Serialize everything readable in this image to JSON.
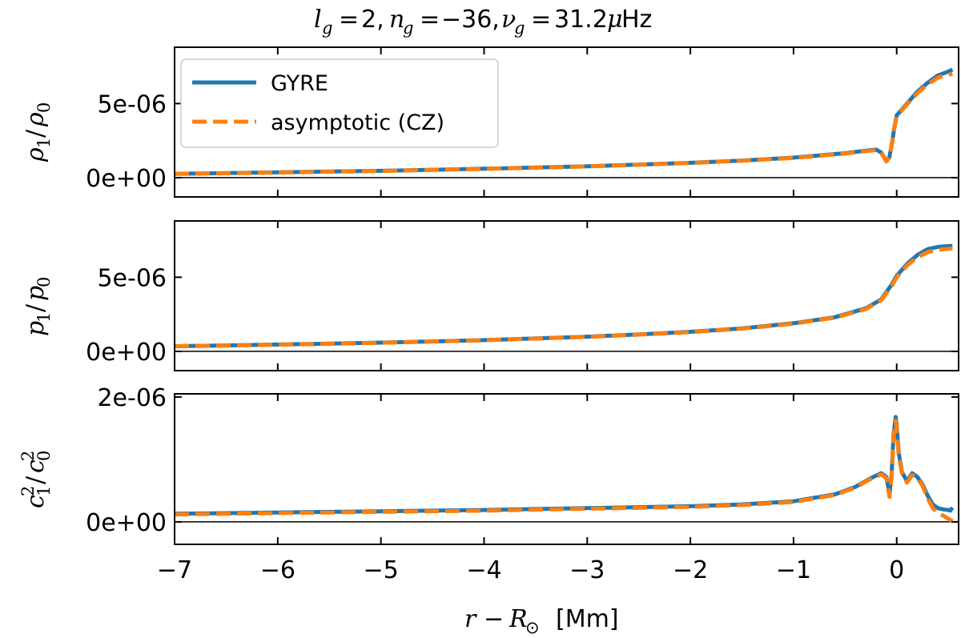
{
  "chart_data": {
    "type": "line",
    "title": "l_g = 2, n_g = −36, ν_g = 31.2 μHz",
    "xlabel": "r − R⊙ [Mm]",
    "xlim": [
      -7.0,
      0.6
    ],
    "xticks": [
      -7,
      -6,
      -5,
      -4,
      -3,
      -2,
      -1,
      0
    ],
    "xtick_labels": [
      "−7",
      "−6",
      "−5",
      "−4",
      "−3",
      "−2",
      "−1",
      "0"
    ],
    "legend": {
      "location": "upper-left of top panel",
      "entries": [
        {
          "name": "GYRE",
          "color": "#1f77b4",
          "style": "solid"
        },
        {
          "name": "asymptotic (CZ)",
          "color": "#ff7f0e",
          "style": "dashed"
        }
      ]
    },
    "panels": [
      {
        "ylabel": "ρ1/ρ0",
        "ylim": [
          -1.3e-06,
          8.8e-06
        ],
        "yticks": [
          0,
          5e-06
        ],
        "ytick_labels": [
          "0e+00",
          "5e-06"
        ],
        "series": [
          {
            "name": "GYRE",
            "x": [
              -7.0,
              -6.5,
              -6.0,
              -5.5,
              -5.0,
              -4.5,
              -4.0,
              -3.5,
              -3.0,
              -2.5,
              -2.0,
              -1.5,
              -1.0,
              -0.5,
              -0.3,
              -0.2,
              -0.15,
              -0.1,
              -0.07,
              -0.04,
              -0.02,
              0.0,
              0.05,
              0.1,
              0.15,
              0.2,
              0.3,
              0.4,
              0.5,
              0.54
            ],
            "y": [
              2.6e-07,
              3.1e-07,
              3.6e-07,
              4.1e-07,
              4.6e-07,
              5.3e-07,
              6e-07,
              6.8e-07,
              7.7e-07,
              8.8e-07,
              1e-06,
              1.15e-06,
              1.35e-06,
              1.65e-06,
              1.82e-06,
              1.9e-06,
              1.7e-06,
              1.12e-06,
              1.4e-06,
              2.6e-06,
              3.5e-06,
              4.2e-06,
              4.6e-06,
              5e-06,
              5.4e-06,
              5.8e-06,
              6.4e-06,
              6.9e-06,
              7.15e-06,
              7.3e-06
            ]
          },
          {
            "name": "asymptotic (CZ)",
            "x": [
              -7.0,
              -6.5,
              -6.0,
              -5.5,
              -5.0,
              -4.5,
              -4.0,
              -3.5,
              -3.0,
              -2.5,
              -2.0,
              -1.5,
              -1.0,
              -0.5,
              -0.3,
              -0.2,
              -0.15,
              -0.1,
              -0.07,
              -0.04,
              -0.02,
              0.0,
              0.05,
              0.1,
              0.15,
              0.2,
              0.3,
              0.4,
              0.5,
              0.54
            ],
            "y": [
              2.5e-07,
              3e-07,
              3.5e-07,
              4e-07,
              4.5e-07,
              5.2e-07,
              5.9e-07,
              6.7e-07,
              7.6e-07,
              8.7e-07,
              9.9e-07,
              1.14e-06,
              1.33e-06,
              1.62e-06,
              1.79e-06,
              1.86e-06,
              1.66e-06,
              1.1e-06,
              1.37e-06,
              2.55e-06,
              3.45e-06,
              4.15e-06,
              4.55e-06,
              4.95e-06,
              5.3e-06,
              5.7e-06,
              6.3e-06,
              6.75e-06,
              6.95e-06,
              7e-06
            ]
          }
        ]
      },
      {
        "ylabel": "p1/p0",
        "ylim": [
          -1.3e-06,
          8.8e-06
        ],
        "yticks": [
          0,
          5e-06
        ],
        "ytick_labels": [
          "0e+00",
          "5e-06"
        ],
        "series": [
          {
            "name": "GYRE",
            "x": [
              -7.0,
              -6.5,
              -6.0,
              -5.5,
              -5.0,
              -4.5,
              -4.0,
              -3.5,
              -3.0,
              -2.5,
              -2.0,
              -1.5,
              -1.0,
              -0.6,
              -0.3,
              -0.15,
              -0.05,
              0.0,
              0.05,
              0.1,
              0.2,
              0.3,
              0.4,
              0.5,
              0.54
            ],
            "y": [
              3.5e-07,
              4e-07,
              4.6e-07,
              5.2e-07,
              5.9e-07,
              6.7e-07,
              7.6e-07,
              8.7e-07,
              9.9e-07,
              1.14e-06,
              1.32e-06,
              1.55e-06,
              1.9e-06,
              2.3e-06,
              2.9e-06,
              3.5e-06,
              4.5e-06,
              5.1e-06,
              5.5e-06,
              5.9e-06,
              6.5e-06,
              6.9e-06,
              7.05e-06,
              7.1e-06,
              7.12e-06
            ]
          },
          {
            "name": "asymptotic (CZ)",
            "x": [
              -7.0,
              -6.5,
              -6.0,
              -5.5,
              -5.0,
              -4.5,
              -4.0,
              -3.5,
              -3.0,
              -2.5,
              -2.0,
              -1.5,
              -1.0,
              -0.6,
              -0.3,
              -0.15,
              -0.05,
              0.0,
              0.05,
              0.1,
              0.2,
              0.3,
              0.4,
              0.5,
              0.54
            ],
            "y": [
              3.4e-07,
              3.9e-07,
              4.5e-07,
              5.1e-07,
              5.8e-07,
              6.6e-07,
              7.5e-07,
              8.6e-07,
              9.8e-07,
              1.13e-06,
              1.3e-06,
              1.53e-06,
              1.87e-06,
              2.27e-06,
              2.85e-06,
              3.45e-06,
              4.4e-06,
              5e-06,
              5.4e-06,
              5.8e-06,
              6.35e-06,
              6.7e-06,
              6.85e-06,
              6.92e-06,
              6.95e-06
            ]
          }
        ]
      },
      {
        "ylabel": "c1²/c0²",
        "ylim": [
          -3.6e-07,
          2.05e-06
        ],
        "yticks": [
          0,
          2e-06
        ],
        "ytick_labels": [
          "0e+00",
          "2e-06"
        ],
        "series": [
          {
            "name": "GYRE",
            "x": [
              -7.0,
              -6.0,
              -5.0,
              -4.0,
              -3.0,
              -2.0,
              -1.5,
              -1.0,
              -0.6,
              -0.4,
              -0.25,
              -0.15,
              -0.1,
              -0.07,
              -0.05,
              -0.03,
              -0.01,
              0.0,
              0.02,
              0.05,
              0.1,
              0.15,
              0.2,
              0.25,
              0.3,
              0.35,
              0.4,
              0.45,
              0.5,
              0.52,
              0.54
            ],
            "y": [
              1.3e-07,
              1.5e-07,
              1.7e-07,
              1.9e-07,
              2.2e-07,
              2.5e-07,
              2.8e-07,
              3.3e-07,
              4.4e-07,
              5.6e-07,
              7e-07,
              7.8e-07,
              7.2e-07,
              4.5e-07,
              7.5e-07,
              1.4e-06,
              1.68e-06,
              1.55e-06,
              1.1e-06,
              8e-07,
              6.5e-07,
              7.8e-07,
              7.2e-07,
              6e-07,
              4.2e-07,
              2.8e-07,
              2.2e-07,
              2e-07,
              1.9e-07,
              1.8e-07,
              2.3e-07
            ]
          },
          {
            "name": "asymptotic (CZ)",
            "x": [
              -7.0,
              -6.0,
              -5.0,
              -4.0,
              -3.0,
              -2.0,
              -1.5,
              -1.0,
              -0.6,
              -0.4,
              -0.25,
              -0.15,
              -0.1,
              -0.07,
              -0.05,
              -0.03,
              -0.01,
              0.0,
              0.02,
              0.05,
              0.1,
              0.15,
              0.2,
              0.25,
              0.3,
              0.35,
              0.4,
              0.45,
              0.5,
              0.52,
              0.54
            ],
            "y": [
              1.2e-07,
              1.4e-07,
              1.6e-07,
              1.8e-07,
              2.1e-07,
              2.4e-07,
              2.7e-07,
              3.2e-07,
              4.3e-07,
              5.5e-07,
              6.9e-07,
              7.6e-07,
              7e-07,
              4e-07,
              7.2e-07,
              1.35e-06,
              1.62e-06,
              1.5e-06,
              1.05e-06,
              7.8e-07,
              6.3e-07,
              7.5e-07,
              7e-07,
              5.8e-07,
              3.8e-07,
              2.2e-07,
              1.4e-07,
              1e-07,
              5e-08,
              3e-08,
              1e-08
            ]
          }
        ]
      }
    ]
  }
}
